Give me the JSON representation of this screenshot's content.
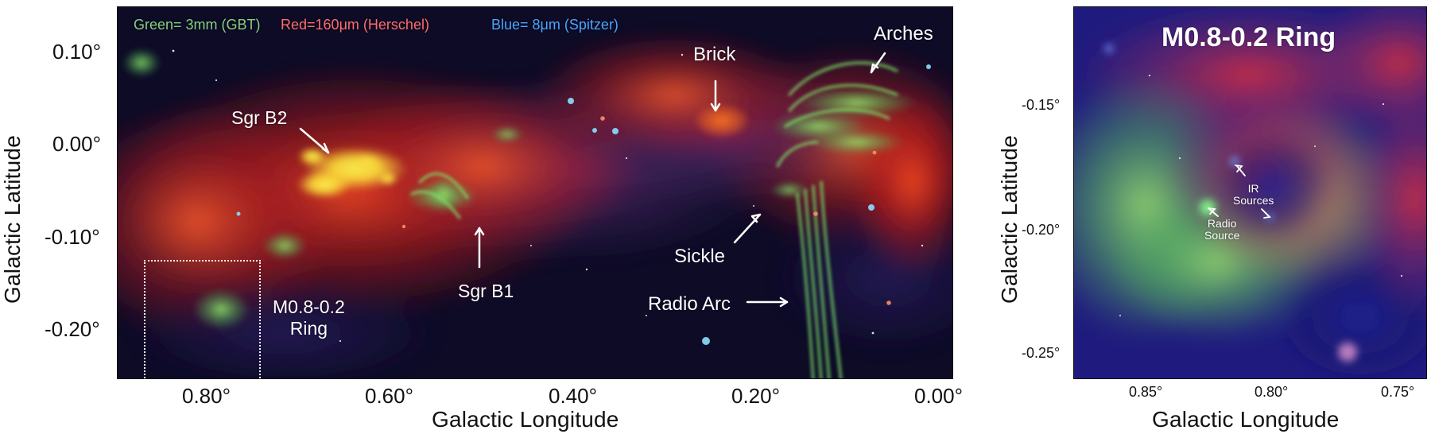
{
  "left_panel": {
    "legend": {
      "green": "Green= 3mm (GBT)",
      "red": "Red=160μm (Herschel)",
      "blue": "Blue= 8μm (Spitzer)"
    },
    "labels": {
      "sgr_b2": "Sgr B2",
      "sgr_b1": "Sgr B1",
      "brick": "Brick",
      "arches": "Arches",
      "sickle": "Sickle",
      "radio_arc": "Radio Arc",
      "ring_label": "M0.8-0.2\nRing"
    },
    "y_ticks": [
      "0.10°",
      "0.00°",
      "-0.10°",
      "-0.20°"
    ],
    "x_ticks": [
      "0.80°",
      "0.60°",
      "0.40°",
      "0.20°",
      "0.00°"
    ],
    "y_label": "Galactic Latitude",
    "x_label": "Galactic Longitude"
  },
  "right_panel": {
    "title": "M0.8-0.2 Ring",
    "annotations": {
      "ir": "IR\nSources",
      "radio": "Radio\nSource"
    },
    "y_ticks": [
      "-0.15°",
      "-0.20°",
      "-0.25°"
    ],
    "x_ticks": [
      "0.85°",
      "0.80°",
      "0.75°"
    ],
    "y_label": "Galactic Latitude",
    "x_label": "Galactic Longitude"
  },
  "colors": {
    "legend_green": "#87d07f",
    "legend_red": "#ff6c6c",
    "legend_blue": "#4aa5ff",
    "annotation": "#ffffff",
    "axis": "#111111"
  }
}
